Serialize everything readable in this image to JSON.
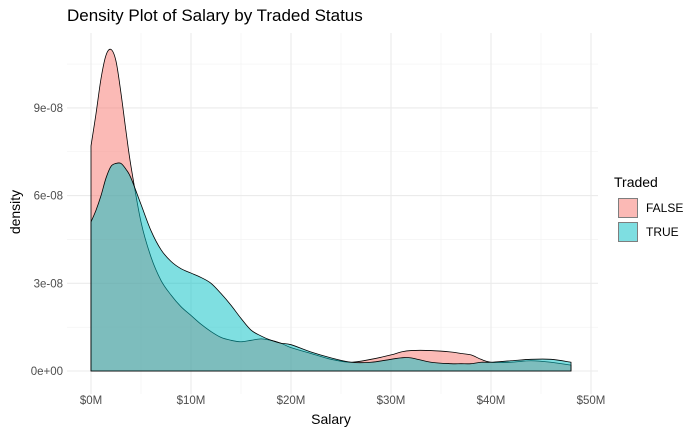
{
  "chart_data": {
    "type": "area",
    "title": "Density Plot of Salary by Traded Status",
    "xlabel": "Salary",
    "ylabel": "density",
    "xlim": [
      0,
      50000000
    ],
    "ylim": [
      0,
      1.1e-07
    ],
    "x_ticks": [
      {
        "value": 0,
        "label": "$0M"
      },
      {
        "value": 10000000,
        "label": "$10M"
      },
      {
        "value": 20000000,
        "label": "$20M"
      },
      {
        "value": 30000000,
        "label": "$30M"
      },
      {
        "value": 40000000,
        "label": "$40M"
      },
      {
        "value": 50000000,
        "label": "$50M"
      }
    ],
    "y_ticks": [
      {
        "value": 0,
        "label": "0e+00"
      },
      {
        "value": 3e-08,
        "label": "3e-08"
      },
      {
        "value": 6e-08,
        "label": "6e-08"
      },
      {
        "value": 9e-08,
        "label": "9e-08"
      }
    ],
    "grid": true,
    "legend": {
      "title": "Traded",
      "position": "right"
    },
    "series": [
      {
        "name": "FALSE",
        "color": "#F8766D",
        "opacity": 0.5,
        "x": [
          0,
          500000,
          1000000,
          1500000,
          2000000,
          2500000,
          3000000,
          3500000,
          4000000,
          5000000,
          6000000,
          7000000,
          8000000,
          9000000,
          10000000,
          11000000,
          12000000,
          13000000,
          14000000,
          15000000,
          16000000,
          17000000,
          18000000,
          19000000,
          20000000,
          22000000,
          24000000,
          26000000,
          28000000,
          30000000,
          31000000,
          32000000,
          34000000,
          36000000,
          37000000,
          38000000,
          39000000,
          40000000,
          42000000,
          44000000,
          46000000,
          48000000
        ],
        "y": [
          7.7e-08,
          8.8e-08,
          1e-07,
          1.08e-07,
          1.1e-07,
          1.06e-07,
          9.5e-08,
          8.2e-08,
          7e-08,
          5.1e-08,
          3.9e-08,
          3.1e-08,
          2.6e-08,
          2.2e-08,
          1.9e-08,
          1.6e-08,
          1.35e-08,
          1.15e-08,
          1.05e-08,
          1e-08,
          1.05e-08,
          1.1e-08,
          1.05e-08,
          9.5e-09,
          8e-09,
          6e-09,
          4e-09,
          3e-09,
          4e-09,
          5.5e-09,
          6.5e-09,
          7e-09,
          7e-09,
          6.5e-09,
          6e-09,
          5.5e-09,
          4e-09,
          3e-09,
          3e-09,
          3.5e-09,
          3e-09,
          2e-09
        ]
      },
      {
        "name": "TRUE",
        "color": "#00BFC4",
        "opacity": 0.5,
        "x": [
          0,
          500000,
          1000000,
          1500000,
          2000000,
          2500000,
          3000000,
          3500000,
          4000000,
          5000000,
          6000000,
          7000000,
          8000000,
          9000000,
          10000000,
          11000000,
          12000000,
          13000000,
          14000000,
          15000000,
          16000000,
          17000000,
          18000000,
          19000000,
          20000000,
          22000000,
          24000000,
          26000000,
          28000000,
          30000000,
          31000000,
          32000000,
          34000000,
          36000000,
          37000000,
          38000000,
          39000000,
          40000000,
          42000000,
          44000000,
          46000000,
          48000000
        ],
        "y": [
          5.1e-08,
          5.5e-08,
          6e-08,
          6.6e-08,
          7e-08,
          7.1e-08,
          7.1e-08,
          6.9e-08,
          6.6e-08,
          5.7e-08,
          4.8e-08,
          4.15e-08,
          3.75e-08,
          3.5e-08,
          3.35e-08,
          3.2e-08,
          3e-08,
          2.65e-08,
          2.25e-08,
          1.8e-08,
          1.4e-08,
          1.2e-08,
          1.05e-08,
          9.5e-09,
          9e-09,
          6.5e-09,
          4.5e-09,
          3e-09,
          3e-09,
          4e-09,
          4.5e-09,
          4.5e-09,
          3e-09,
          2.5e-09,
          2.5e-09,
          2.5e-09,
          3e-09,
          3e-09,
          3.5e-09,
          4e-09,
          4e-09,
          3e-09
        ]
      }
    ]
  }
}
